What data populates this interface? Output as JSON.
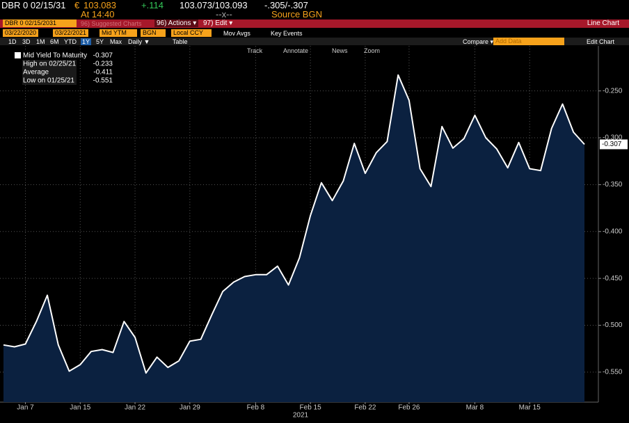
{
  "header": {
    "ticker": "DBR 0 02/15/31",
    "currency": "€",
    "price": "103.083",
    "change": "+.114",
    "bid_ask": "103.073/103.093",
    "yield": "-.305/-.307",
    "time": "At 14:40",
    "size": "--x--",
    "source": "Source BGN"
  },
  "toolbar": {
    "security": "DBR 0 02/15/2031",
    "suggested": "96) Suggested Charts",
    "actions": "96) Actions ▾",
    "edit": "97) Edit ▾",
    "view": "Line Chart"
  },
  "settings": {
    "start": "03/22/2020",
    "end": "03/22/2021",
    "field": "Mid YTM",
    "source": "BGN",
    "currency": "Local CCY",
    "mov_avgs": "Mov Avgs",
    "key_events": "Key Events"
  },
  "periods": [
    "1D",
    "3D",
    "1M",
    "6M",
    "YTD",
    "1Y",
    "5Y",
    "Max"
  ],
  "frequency": "Daily ▼",
  "table": "Table",
  "compare": "Compare ▾",
  "add_data": "Add Data",
  "edit_chart": "Edit Chart",
  "chart_tools": [
    "Track",
    "Annotate",
    "News",
    "Zoom"
  ],
  "chart_data": {
    "type": "area",
    "xlabel": "2021",
    "categories": [
      null,
      null,
      "Jan 7",
      null,
      null,
      null,
      null,
      "Jan 15",
      null,
      null,
      null,
      null,
      "Jan 22",
      null,
      null,
      null,
      null,
      "Jan 29",
      null,
      null,
      null,
      null,
      null,
      "Feb 8",
      null,
      null,
      null,
      null,
      "Feb 15",
      null,
      null,
      null,
      null,
      "Feb 22",
      null,
      null,
      null,
      "Feb 26",
      null,
      null,
      null,
      null,
      null,
      "Mar 8",
      null,
      null,
      null,
      null,
      "Mar 15",
      null,
      null,
      null,
      null,
      null
    ],
    "series": [
      {
        "name": "Mid Yield To Maturity",
        "color": "#ffffff",
        "fill": "#0b2140",
        "values": [
          -0.521,
          -0.523,
          -0.52,
          -0.496,
          -0.468,
          -0.521,
          -0.549,
          -0.542,
          -0.528,
          -0.526,
          -0.529,
          -0.496,
          -0.513,
          -0.551,
          -0.534,
          -0.545,
          -0.538,
          -0.517,
          -0.515,
          -0.489,
          -0.464,
          -0.454,
          -0.448,
          -0.446,
          -0.446,
          -0.437,
          -0.457,
          -0.428,
          -0.383,
          -0.348,
          -0.367,
          -0.346,
          -0.306,
          -0.338,
          -0.316,
          -0.304,
          -0.233,
          -0.26,
          -0.333,
          -0.352,
          -0.288,
          -0.311,
          -0.301,
          -0.276,
          -0.3,
          -0.312,
          -0.332,
          -0.305,
          -0.333,
          -0.335,
          -0.29,
          -0.264,
          -0.294,
          -0.307
        ]
      }
    ],
    "ylim": [
      -0.582,
      -0.202
    ],
    "yticks": [
      {
        "value": -0.25,
        "label": "-0.250"
      },
      {
        "value": -0.3,
        "label": "-0.300"
      },
      {
        "value": -0.35,
        "label": "-0.350"
      },
      {
        "value": -0.4,
        "label": "-0.400"
      },
      {
        "value": -0.45,
        "label": "-0.450"
      },
      {
        "value": -0.5,
        "label": "-0.500"
      },
      {
        "value": -0.55,
        "label": "-0.550"
      }
    ],
    "grid": true,
    "legend_items": [
      {
        "label": "Mid Yield To Maturity",
        "value": -0.307
      },
      {
        "label": "High on 02/25/21",
        "value": -0.233
      },
      {
        "label": "Average",
        "value": -0.411
      },
      {
        "label": "Low on 01/25/21",
        "value": -0.551
      }
    ]
  }
}
